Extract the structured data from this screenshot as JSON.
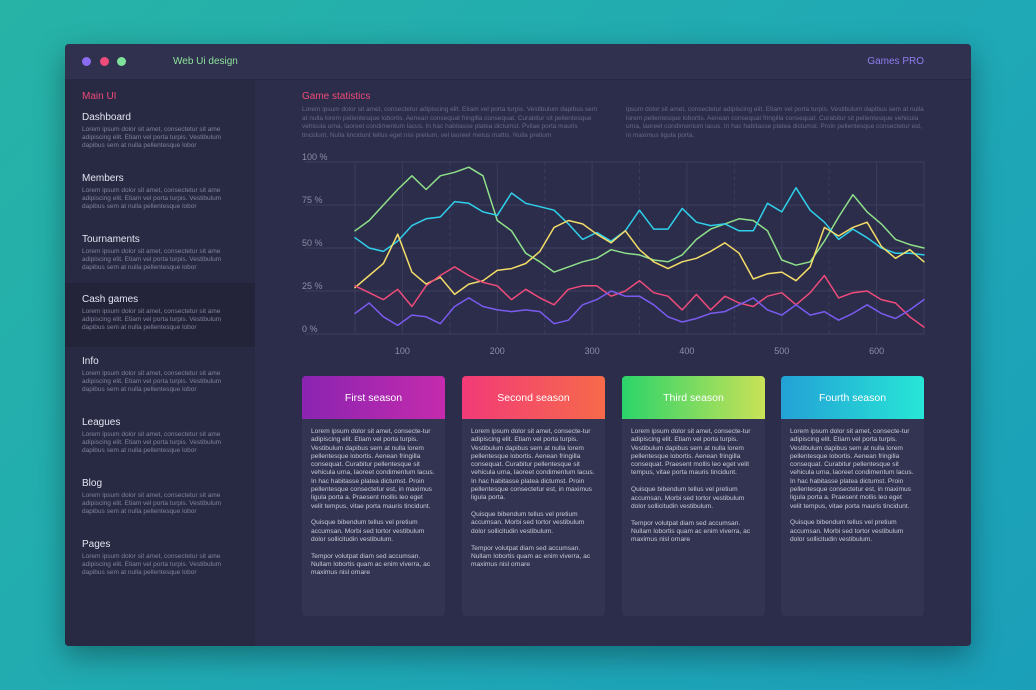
{
  "app": {
    "title": "Web Ui design",
    "brand": "Games PRO"
  },
  "colors": {
    "close": "#8a6cf0",
    "minimize": "#ef4b7b",
    "maximize": "#7fe29a",
    "accent": "#ef4b7b"
  },
  "sidebar": {
    "heading": "Main UI",
    "items": [
      {
        "label": "Dashboard",
        "desc": "Lorem ipsum dolor sit amet, consectetur sit ame adipiscing elit. Etiam vel porta turpis. Vestibulum dapibus sem at nulla pellentesque lobor"
      },
      {
        "label": "Members",
        "desc": "Lorem ipsum dolor sit amet, consectetur sit ame adipiscing elit. Etiam vel porta turpis. Vestibulum dapibus sem at nulla pellentesque lobor"
      },
      {
        "label": "Tournaments",
        "desc": "Lorem ipsum dolor sit amet, consectetur sit ame adipiscing elit. Etiam vel porta turpis. Vestibulum dapibus sem at nulla pellentesque lobor"
      },
      {
        "label": "Cash games",
        "desc": "Lorem ipsum dolor sit amet, consectetur sit ame adipiscing elit. Etiam vel porta turpis. Vestibulum dapibus sem at nulla pellentesque lobor"
      },
      {
        "label": "Info",
        "desc": "Lorem ipsum dolor sit amet, consectetur sit ame adipiscing elit. Etiam vel porta turpis. Vestibulum dapibus sem at nulla pellentesque lobor"
      },
      {
        "label": "Leagues",
        "desc": "Lorem ipsum dolor sit amet, consectetur sit ame adipiscing elit. Etiam vel porta turpis. Vestibulum dapibus sem at nulla pellentesque lobor"
      },
      {
        "label": "Blog",
        "desc": "Lorem ipsum dolor sit amet, consectetur sit ame adipiscing elit. Etiam vel porta turpis. Vestibulum dapibus sem at nulla pellentesque lobor"
      },
      {
        "label": "Pages",
        "desc": "Lorem ipsum dolor sit amet, consectetur sit ame adipiscing elit. Etiam vel porta turpis. Vestibulum dapibus sem at nulla pellentesque lobor"
      }
    ]
  },
  "main": {
    "title": "Game statistics",
    "intro_left": "Lorem ipsum dolor sit amet, consectetur adipiscing elit. Etiam vel porta turpis. Vestibulum dapibus sem at nulla lorem pellentesque lobortis. Aenean consequat fringilla consequat. Curabitur sit pellentesque vehicula urna, laoreet condimentum lacus. In hac habitasse platea dictumst. Pvilae porta mauris tincidunt. Nulla tincidunt tellus eget nisi pretium, vel laoreet metus mattis. Nulla pretium",
    "intro_right": "ipsum dolor sit amet, consectetur adipiscing elit. Etiam vel porta turpis. Vestibulum dapibus sem at nulla lorem pellentesque lobortis. Aenean consequat fringilla consequat. Curabitur sit pellentesque vehicula urna, laoreet condimentum lacus. In hac habitasse platea dictumst. Proin pellentesque consectetur est, in maximus ligula porta."
  },
  "chart_data": {
    "type": "line",
    "xlim": [
      50,
      650
    ],
    "ylim": [
      0,
      100
    ],
    "x_ticks": [
      "100",
      "200",
      "300",
      "400",
      "500",
      "600"
    ],
    "y_ticks": [
      "0 %",
      "25 %",
      "50 %",
      "75 %",
      "100 %"
    ],
    "grid": true,
    "x": [
      50,
      65,
      80,
      95,
      110,
      125,
      140,
      155,
      170,
      185,
      200,
      215,
      230,
      245,
      260,
      275,
      290,
      305,
      320,
      335,
      350,
      365,
      380,
      395,
      410,
      425,
      440,
      455,
      470,
      485,
      500,
      515,
      530,
      545,
      560,
      575,
      590,
      605,
      620,
      635,
      650
    ],
    "series": [
      {
        "color": "#8ee08a",
        "values": [
          60,
          66,
          75,
          84,
          92,
          84,
          92,
          94,
          97,
          92,
          66,
          60,
          47,
          42,
          36,
          39,
          42,
          44,
          49,
          47,
          46,
          43,
          42,
          46,
          55,
          61,
          64,
          67,
          66,
          60,
          43,
          40,
          42,
          54,
          68,
          81,
          71,
          64,
          55,
          52,
          50
        ]
      },
      {
        "color": "#2fd0ec",
        "values": [
          56,
          50,
          48,
          54,
          63,
          67,
          68,
          77,
          76,
          71,
          69,
          82,
          76,
          74,
          72,
          64,
          55,
          59,
          54,
          60,
          72,
          61,
          61,
          73,
          65,
          63,
          64,
          60,
          60,
          76,
          71,
          85,
          72,
          65,
          55,
          61,
          56,
          50,
          47,
          47,
          46
        ]
      },
      {
        "color": "#f4dd68",
        "values": [
          27,
          34,
          41,
          58,
          36,
          29,
          33,
          23,
          29,
          31,
          37,
          38,
          41,
          48,
          62,
          66,
          64,
          58,
          53,
          60,
          49,
          42,
          38,
          42,
          44,
          48,
          53,
          47,
          32,
          35,
          36,
          31,
          39,
          62,
          57,
          62,
          65,
          51,
          44,
          49,
          42
        ]
      },
      {
        "color": "#ef4b7b",
        "values": [
          28,
          24,
          20,
          26,
          16,
          28,
          34,
          39,
          34,
          30,
          28,
          20,
          26,
          21,
          17,
          26,
          28,
          28,
          22,
          25,
          31,
          24,
          22,
          14,
          23,
          14,
          22,
          18,
          16,
          22,
          24,
          17,
          24,
          34,
          21,
          24,
          25,
          20,
          18,
          10,
          4
        ]
      },
      {
        "color": "#7a5bf0",
        "values": [
          12,
          18,
          10,
          5,
          11,
          10,
          6,
          16,
          21,
          16,
          14,
          13,
          14,
          13,
          6,
          8,
          17,
          20,
          25,
          22,
          22,
          17,
          10,
          7,
          9,
          12,
          13,
          17,
          21,
          14,
          11,
          17,
          11,
          13,
          8,
          12,
          17,
          12,
          9,
          14,
          20
        ]
      }
    ]
  },
  "seasons": [
    {
      "title": "First season",
      "grad_from": "#8a24b2",
      "grad_to": "#c52bac",
      "paragraphs": [
        "Lorem ipsum dolor sit amet, consecte-tur adipiscing elit. Etiam vel porta turpis. Vestibulum dapibus sem at nulla lorem pellentesque lobortis. Aenean fringilla consequat. Curabitur pellentesque sit vehicula urna, laoreet condimentum lacus. In hac habitasse platea dictumst. Proin pellentesque consectetur est, in maximus ligula porta a. Praesent mollis leo eget velit tempus, vitae porta mauris tincidunt.",
        "Quisque bibendum tellus vel pretium accumsan. Morbi sed tortor vestibulum dolor sollicitudin vestibulum.",
        "Tempor volutpat diam sed accumsan. Nullam lobortis quam ac enim viverra, ac maximus nisl ornare"
      ]
    },
    {
      "title": "Second season",
      "grad_from": "#f23a78",
      "grad_to": "#f66a4a",
      "paragraphs": [
        "Lorem ipsum dolor sit amet, consecte-tur adipiscing elit. Etiam vel porta turpis. Vestibulum dapibus sem at nulla lorem pellentesque lobortis. Aenean fringilla consequat. Curabitur pellentesque sit vehicula urna, laoreet condimentum lacus. In hac habitasse platea dictumst. Proin pellentesque consectetur est, in maximus ligula porta.",
        "Quisque bibendum tellus vel pretium accumsan. Morbi sed tortor vestibulum dolor sollicitudin vestibulum.",
        "Tempor volutpat diam sed accumsan. Nullam lobortis quam ac enim viverra, ac maximus nisl ornare"
      ]
    },
    {
      "title": "Third season",
      "grad_from": "#2bd46a",
      "grad_to": "#c9e257",
      "paragraphs": [
        "Lorem ipsum dolor sit amet, consecte-tur adipiscing elit. Etiam vel porta turpis. Vestibulum dapibus sem at nulla lorem pellentesque lobortis. Aenean fringilla consequat. Praesent mollis leo eget velit tempus, vitae porta mauris tincidunt.",
        "Quisque bibendum tellus vel pretium accumsan. Morbi sed tortor vestibulum dolor sollicitudin vestibulum.",
        "Tempor volutpat diam sed accumsan. Nullam lobortis quam ac enim viverra, ac maximus nisl ornare"
      ]
    },
    {
      "title": "Fourth season",
      "grad_from": "#23a1d6",
      "grad_to": "#27e6d6",
      "paragraphs": [
        "Lorem ipsum dolor sit amet, consecte-tur adipiscing elit. Etiam vel porta turpis. Vestibulum dapibus sem at nulla lorem pellentesque lobortis. Aenean fringilla consequat. Curabitur pellentesque sit vehicula urna, laoreet condimentum lacus. In hac habitasse platea dictumst. Proin pellentesque consectetur est, in maximus ligula porta a. Praesent mollis leo eget velit tempus, vitae porta mauris tincidunt.",
        "Quisque bibendum tellus vel pretium accumsan. Morbi sed tortor vestibulum dolor sollicitudin vestibulum."
      ]
    }
  ]
}
